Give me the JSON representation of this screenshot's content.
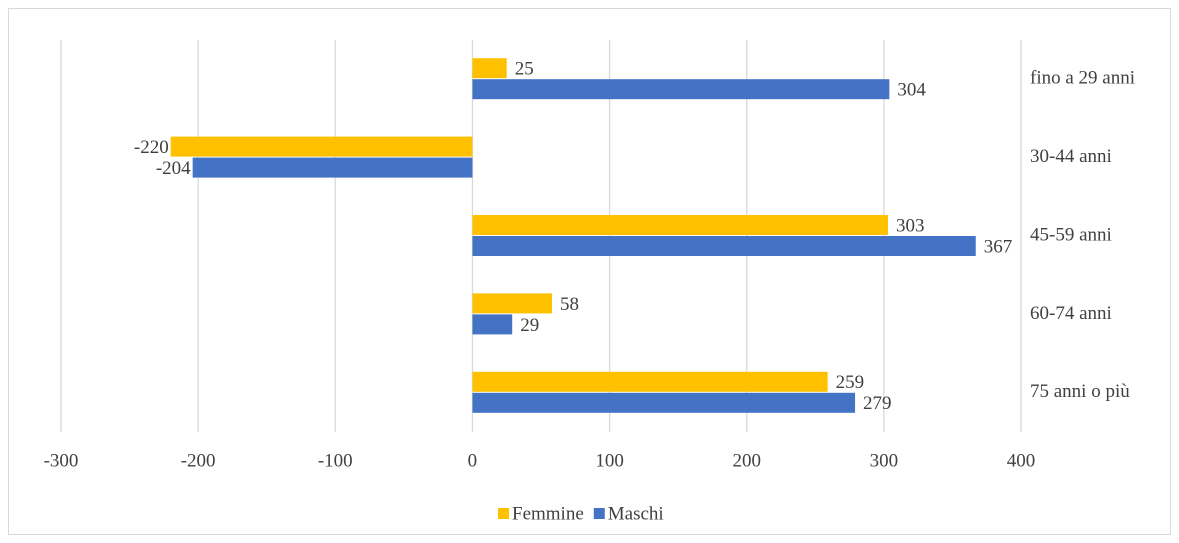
{
  "chart_data": {
    "type": "hbar",
    "categories": [
      "fino a 29 anni",
      "30-44 anni",
      "45-59 anni",
      "60-74 anni",
      "75 anni o più"
    ],
    "series": [
      {
        "name": "Femmine",
        "color": "#ffc000",
        "values": [
          25,
          -220,
          303,
          58,
          259
        ]
      },
      {
        "name": "Maschi",
        "color": "#4472c4",
        "values": [
          304,
          -204,
          367,
          29,
          279
        ]
      }
    ],
    "xlim": [
      -300,
      400
    ],
    "xticks": [
      -300,
      -200,
      -100,
      0,
      100,
      200,
      300,
      400
    ],
    "grid": true,
    "legend": "bottom"
  }
}
